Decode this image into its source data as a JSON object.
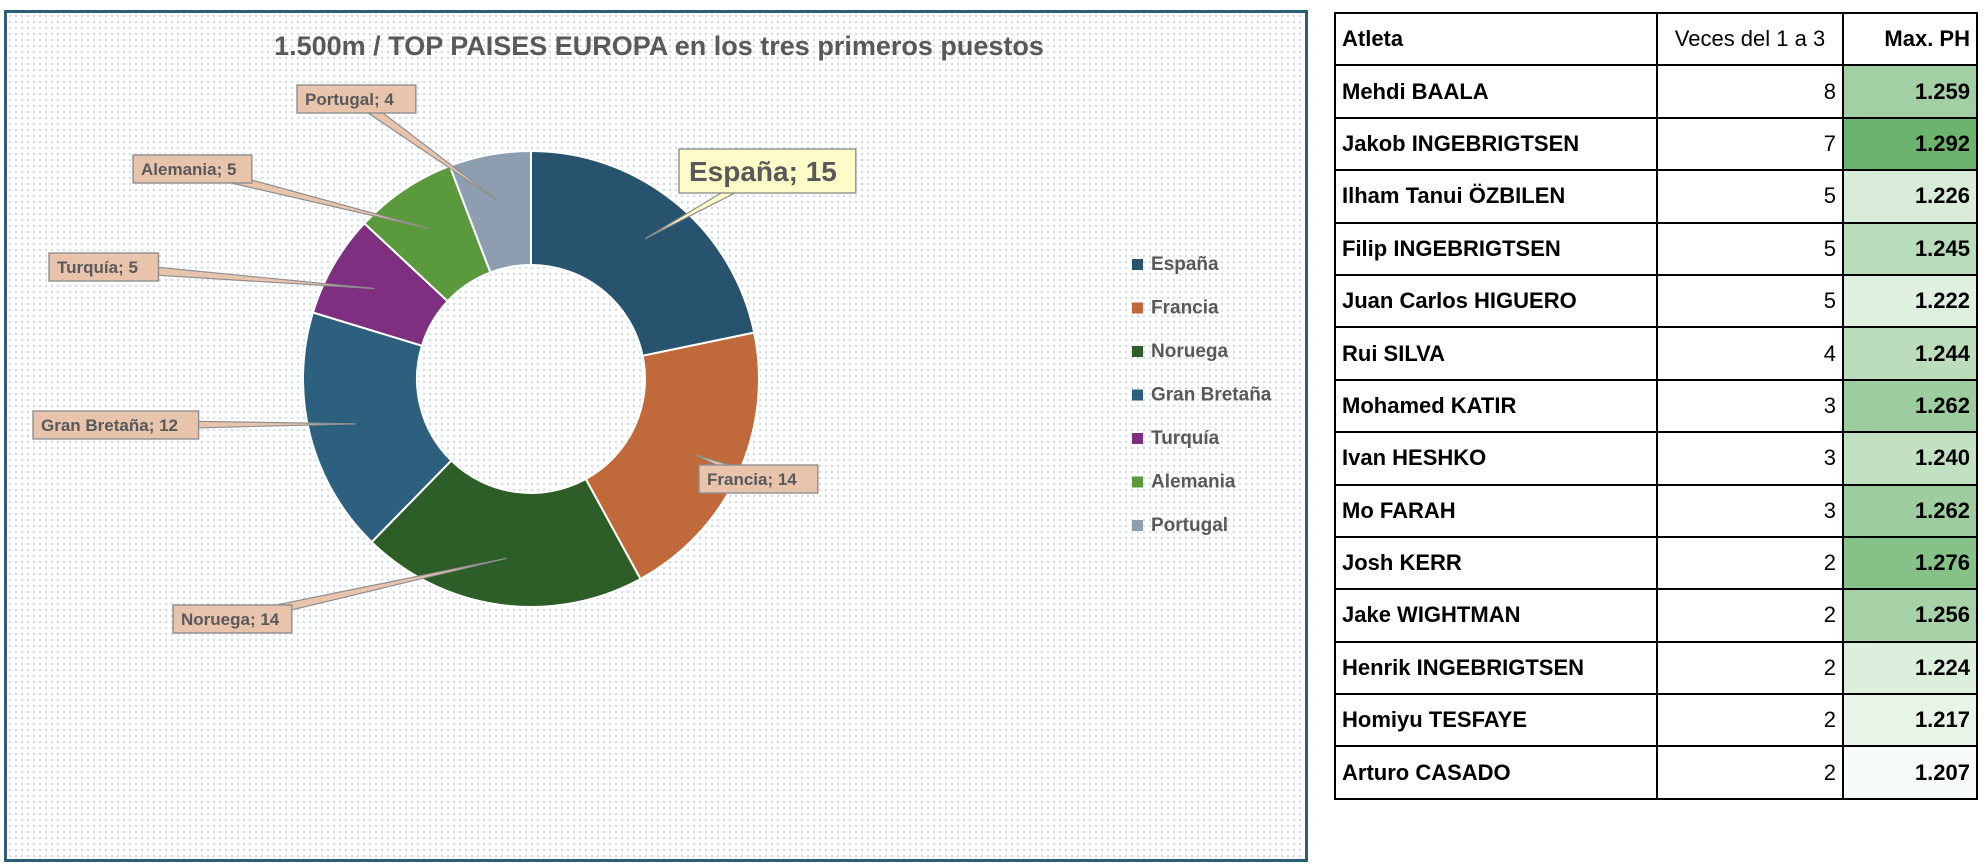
{
  "chart_data": {
    "type": "pie",
    "title": "1.500m / TOP  PAISES EUROPA en los tres primeros puestos",
    "categories": [
      "España",
      "Francia",
      "Noruega",
      "Gran Bretaña",
      "Turquía",
      "Alemania",
      "Portugal"
    ],
    "values": [
      15,
      14,
      14,
      12,
      5,
      5,
      4
    ],
    "data_labels": [
      "España; 15",
      "Francia; 14",
      "Noruega; 14",
      "Gran Bretaña; 12",
      "Turquía; 5",
      "Alemania; 5",
      "Portugal; 4"
    ],
    "colors": [
      "#28536e",
      "#c0693a",
      "#2e5e28",
      "#2d5f7f",
      "#7e2f80",
      "#5a9a3c",
      "#8c9eaf"
    ],
    "legend": "right",
    "donut": true
  },
  "table": {
    "headers": [
      "Atleta",
      "Veces del 1 a 3",
      "Max. PH"
    ],
    "rows": [
      [
        "Mehdi BAALA",
        "8",
        "1.259"
      ],
      [
        "Jakob INGEBRIGTSEN",
        "7",
        "1.292"
      ],
      [
        "Ilham Tanui ÖZBILEN",
        "5",
        "1.226"
      ],
      [
        "Filip INGEBRIGTSEN",
        "5",
        "1.245"
      ],
      [
        "Juan Carlos HIGUERO",
        "5",
        "1.222"
      ],
      [
        "Rui SILVA",
        "4",
        "1.244"
      ],
      [
        "Mohamed KATIR",
        "3",
        "1.262"
      ],
      [
        "Ivan HESHKO",
        "3",
        "1.240"
      ],
      [
        "Mo FARAH",
        "3",
        "1.262"
      ],
      [
        "Josh KERR",
        "2",
        "1.276"
      ],
      [
        "Jake WIGHTMAN",
        "2",
        "1.256"
      ],
      [
        "Henrik INGEBRIGTSEN",
        "2",
        "1.224"
      ],
      [
        "Homiyu TESFAYE",
        "2",
        "1.217"
      ],
      [
        "Arturo CASADO",
        "2",
        "1.207"
      ]
    ]
  }
}
